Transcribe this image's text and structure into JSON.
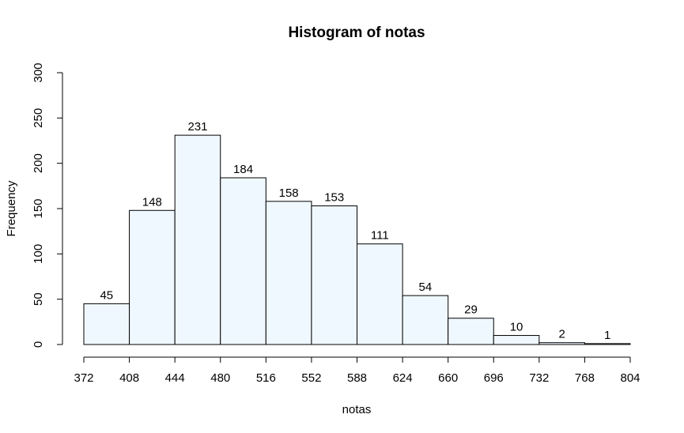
{
  "chart_data": {
    "type": "bar",
    "title": "Histogram of notas",
    "xlabel": "notas",
    "ylabel": "Frequency",
    "bin_edges": [
      372,
      408,
      444,
      480,
      516,
      552,
      588,
      624,
      660,
      696,
      732,
      768,
      804
    ],
    "values": [
      45,
      148,
      231,
      184,
      158,
      153,
      111,
      54,
      29,
      10,
      2,
      1
    ],
    "xlim": [
      372,
      804
    ],
    "ylim": [
      0,
      300
    ],
    "x_ticks": [
      "372",
      "408",
      "444",
      "480",
      "516",
      "552",
      "588",
      "624",
      "660",
      "696",
      "732",
      "768",
      "804"
    ],
    "y_ticks": [
      "0",
      "50",
      "100",
      "150",
      "200",
      "250",
      "300"
    ],
    "bar_color": "#f0f8ff",
    "grid": false,
    "legend": "none"
  }
}
